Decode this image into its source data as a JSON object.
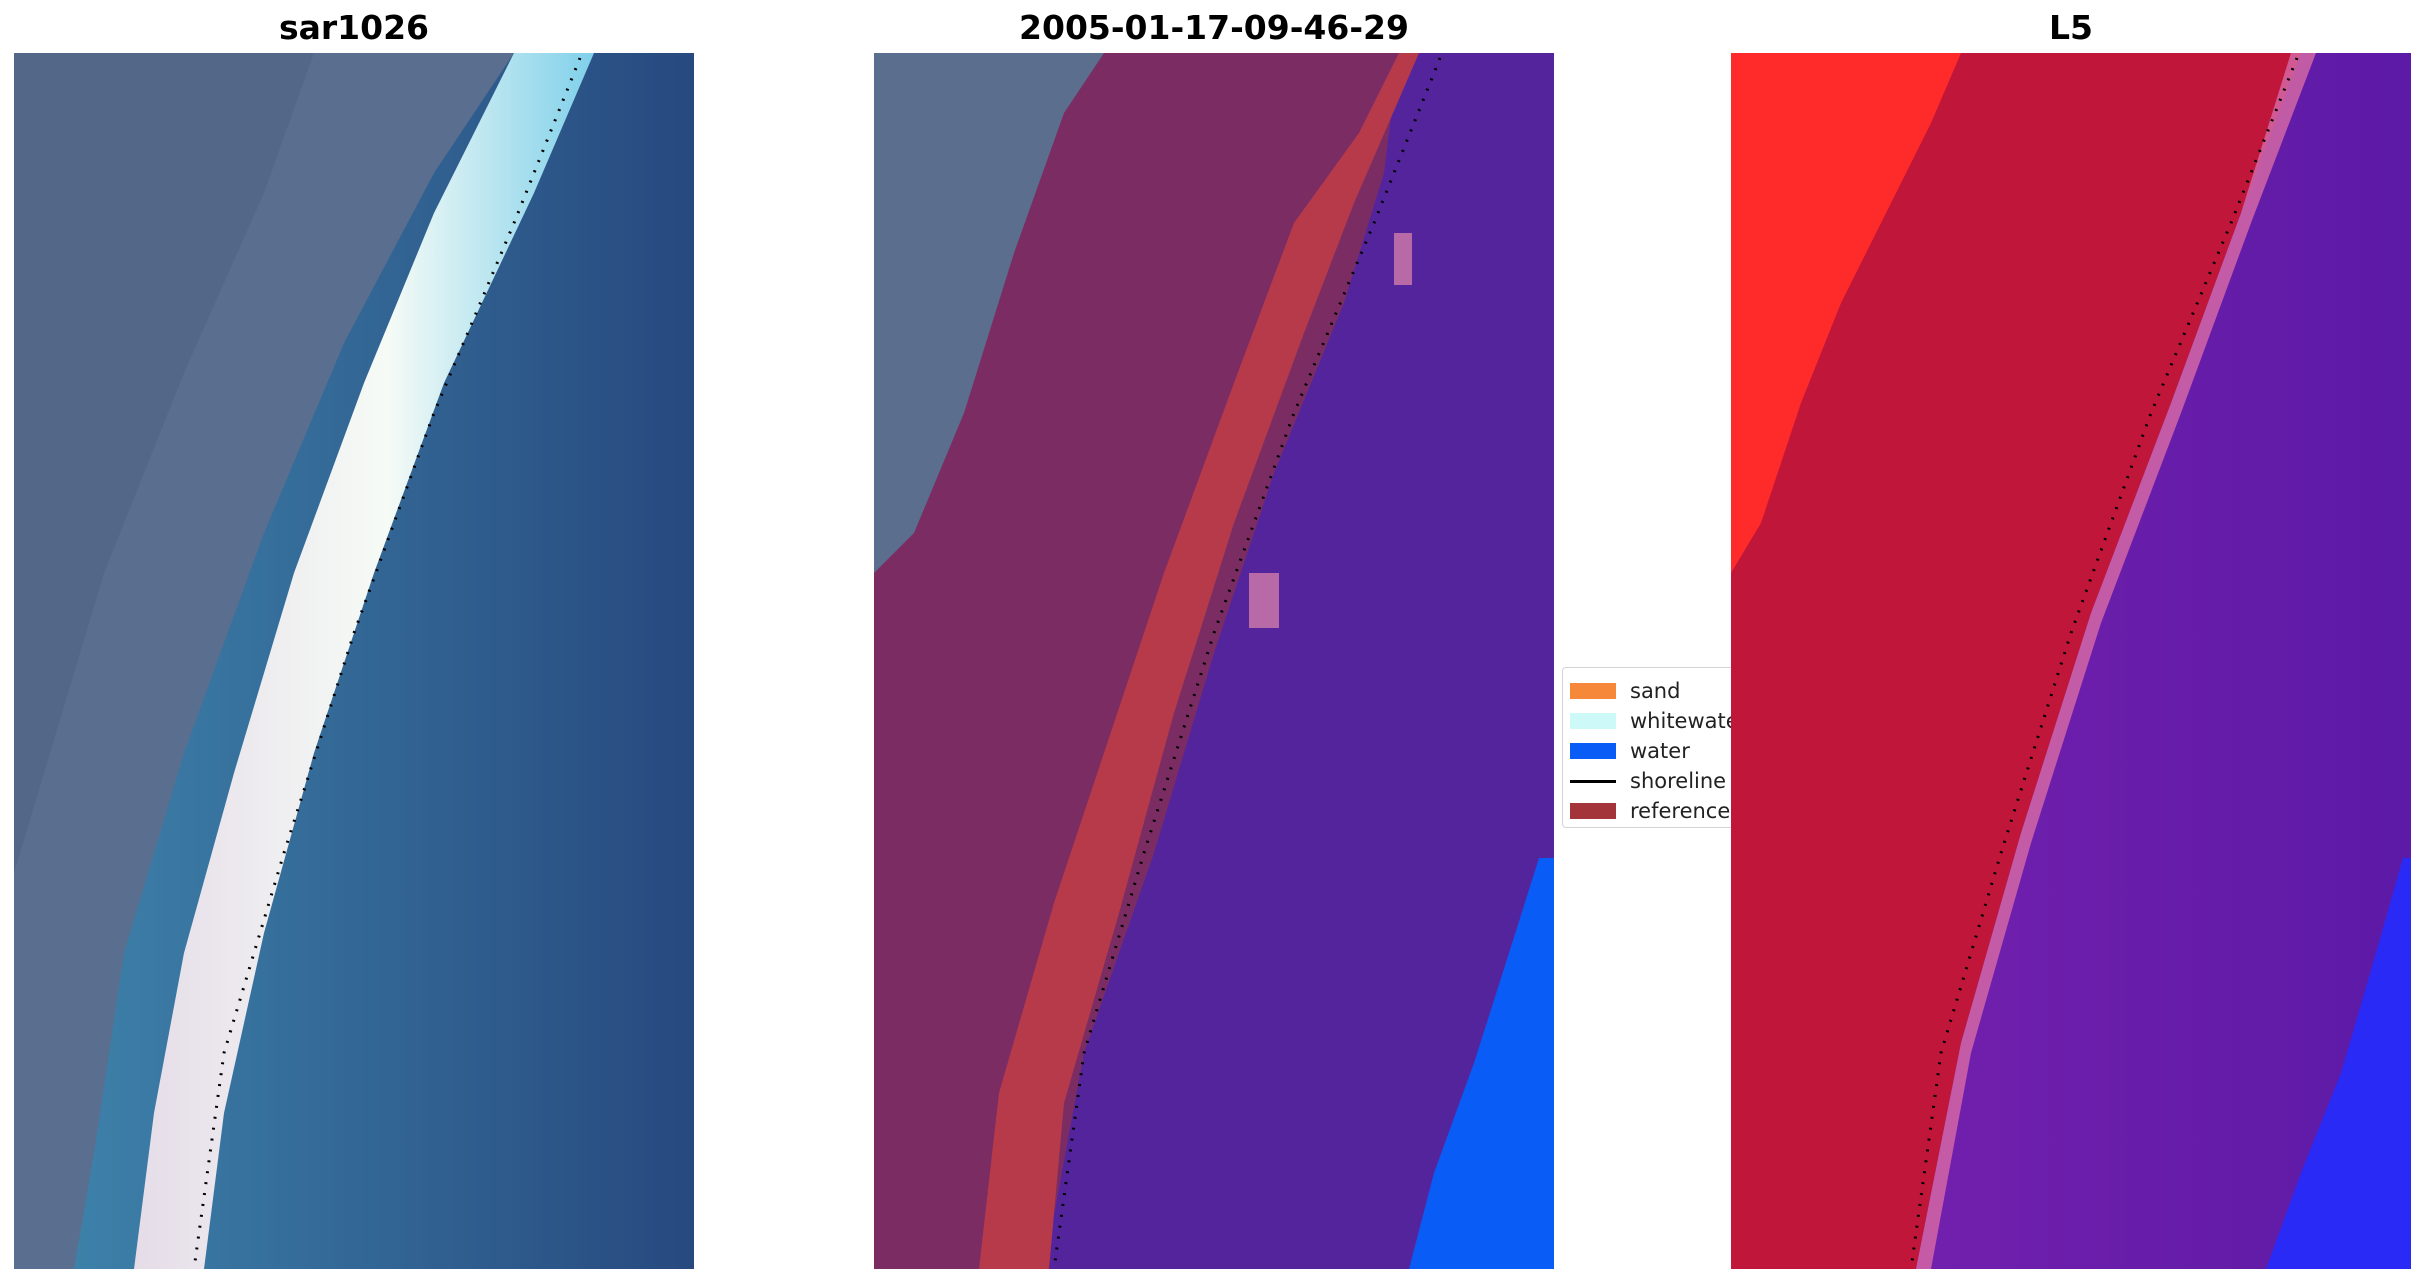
{
  "panels": [
    {
      "title": "sar1026"
    },
    {
      "title": "2005-01-17-09-46-29"
    },
    {
      "title": "L5"
    }
  ],
  "legend": {
    "items": [
      {
        "label": "sand",
        "color": "#f6883a",
        "kind": "patch"
      },
      {
        "label": "whitewater",
        "color": "#cdf9f9",
        "kind": "patch"
      },
      {
        "label": "water",
        "color": "#0a5cf6",
        "kind": "patch"
      },
      {
        "label": "shoreline",
        "color": "#000000",
        "kind": "line"
      },
      {
        "label": "reference",
        "color": "#a2343a",
        "kind": "patch"
      }
    ]
  },
  "colors": {
    "land_rgb": "#5a6e8f",
    "beach_white": "#f1f6f4",
    "ocean_teal": "#3f7fa7",
    "ocean_deep": "#2a5486",
    "class_land": "#7b2d63",
    "class_reference": "#b73a4b",
    "class_water_overlay": "#54249d",
    "class_water": "#0a5cf6",
    "prob_land_red": "#ff2a2a",
    "prob_crimson": "#c0163a",
    "prob_purple": "#6a1fa8",
    "prob_blue": "#2a2af6"
  }
}
